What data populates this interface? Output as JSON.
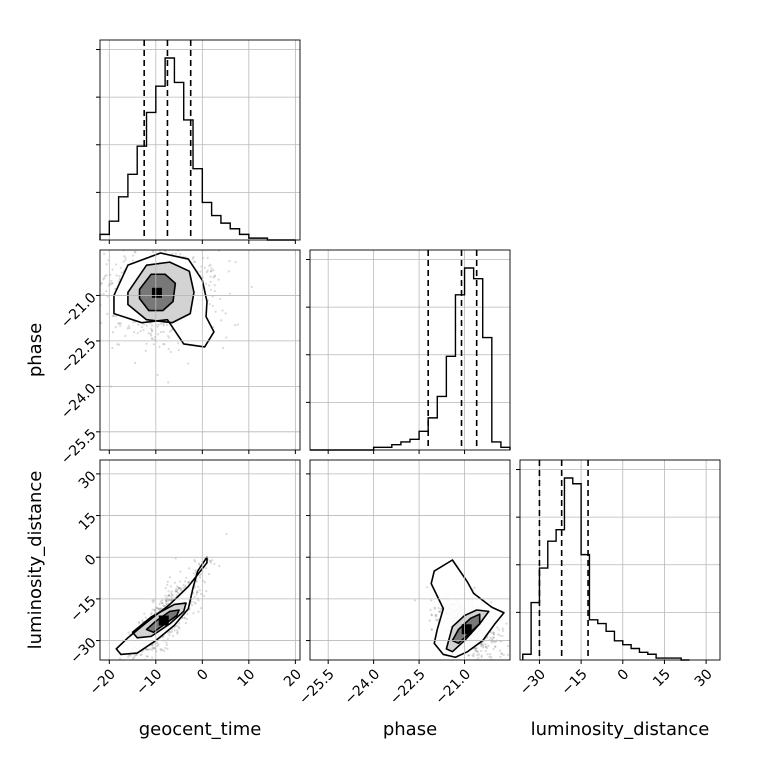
{
  "chart_data": {
    "type": "scatter",
    "grid": true,
    "params": [
      {
        "name": "geocent_time",
        "label": "geocent_time",
        "range": [
          -22,
          21
        ],
        "ticks": [
          -20,
          -10,
          0,
          10,
          20
        ],
        "tick_labels": [
          "−20",
          "−10",
          "0",
          "10",
          "20"
        ],
        "quantiles": [
          -12.5,
          -7.5,
          -2.5
        ]
      },
      {
        "name": "phase",
        "label": "phase",
        "range": [
          -26.1,
          -19.5
        ],
        "ticks": [
          -25.5,
          -24.0,
          -22.5,
          -21.0
        ],
        "tick_labels": [
          "−25.5",
          "−24.0",
          "−22.5",
          "−21.0"
        ],
        "quantiles": [
          -22.2,
          -21.1,
          -20.6
        ]
      },
      {
        "name": "luminosity_distance",
        "label": "luminosity_distance",
        "range": [
          -37,
          35
        ],
        "ticks": [
          -30,
          -15,
          0,
          15,
          30
        ],
        "tick_labels": [
          "−30",
          "−15",
          "0",
          "15",
          "30"
        ],
        "quantiles": [
          -30,
          -22,
          -12.5
        ]
      }
    ],
    "histograms": [
      {
        "param": "geocent_time",
        "edges": [
          -22,
          -20,
          -18,
          -16,
          -14,
          -12,
          -10,
          -8,
          -6,
          -4,
          -2,
          0,
          2,
          4,
          6,
          8,
          10,
          12,
          14,
          16,
          18,
          20
        ],
        "counts": [
          3,
          10,
          23,
          35,
          50,
          68,
          82,
          97,
          84,
          64,
          38,
          20,
          13,
          9,
          6,
          3,
          1,
          1,
          0,
          0,
          0
        ]
      },
      {
        "param": "phase",
        "edges": [
          -26.1,
          -25.8,
          -25.5,
          -25.2,
          -24.9,
          -24.6,
          -24.3,
          -24.0,
          -23.7,
          -23.4,
          -23.1,
          -22.8,
          -22.5,
          -22.2,
          -21.9,
          -21.6,
          -21.3,
          -21.0,
          -20.7,
          -20.4,
          -20.1,
          -19.8,
          -19.5
        ],
        "counts": [
          0,
          0,
          0,
          0,
          0,
          0,
          0,
          1,
          1,
          2,
          3,
          4,
          7,
          12,
          20,
          35,
          58,
          68,
          64,
          42,
          3,
          1
        ]
      },
      {
        "param": "luminosity_distance",
        "edges": [
          -36,
          -33,
          -30,
          -27,
          -24,
          -21,
          -18,
          -15,
          -12,
          -9,
          -6,
          -3,
          0,
          3,
          6,
          9,
          12,
          15,
          18,
          21,
          24
        ],
        "counts": [
          3,
          30,
          48,
          62,
          68,
          95,
          92,
          55,
          21,
          19,
          15,
          10,
          8,
          6,
          4,
          3,
          1,
          1,
          1,
          0
        ]
      }
    ],
    "pairs": [
      {
        "x": "geocent_time",
        "y": "phase",
        "center": [
          -9,
          -20.9
        ],
        "rotation_deg": -20,
        "spread": [
          6,
          0.9
        ],
        "contours": [
          [
            [
              -13.5,
              -20.8
            ],
            [
              -11,
              -20.3
            ],
            [
              -8,
              -20.3
            ],
            [
              -5.8,
              -20.6
            ],
            [
              -6.3,
              -21.2
            ],
            [
              -8.5,
              -21.5
            ],
            [
              -11.5,
              -21.5
            ],
            [
              -13.5,
              -21.1
            ]
          ],
          [
            [
              -16,
              -20.9
            ],
            [
              -12,
              -20.0
            ],
            [
              -7,
              -19.9
            ],
            [
              -2.8,
              -20.2
            ],
            [
              -1.8,
              -20.9
            ],
            [
              -2.6,
              -21.6
            ],
            [
              -6.5,
              -21.9
            ],
            [
              -12,
              -21.8
            ],
            [
              -16,
              -21.3
            ]
          ],
          [
            [
              -19,
              -21.0
            ],
            [
              -16,
              -20.0
            ],
            [
              -9,
              -19.6
            ],
            [
              -3,
              -19.8
            ],
            [
              0,
              -20.5
            ],
            [
              1,
              -21.2
            ],
            [
              0.8,
              -21.7
            ],
            [
              2.5,
              -22.2
            ],
            [
              0.5,
              -22.7
            ],
            [
              -4,
              -22.6
            ],
            [
              -7.5,
              -21.8
            ],
            [
              -13,
              -21.9
            ],
            [
              -19,
              -21.6
            ]
          ]
        ]
      },
      {
        "x": "geocent_time",
        "y": "luminosity_distance",
        "center": [
          -8,
          -22
        ],
        "rotation_deg": 52,
        "spread": [
          7,
          3
        ],
        "contours": [
          [
            [
              -12,
              -26
            ],
            [
              -10,
              -23
            ],
            [
              -7,
              -19.5
            ],
            [
              -5,
              -19
            ],
            [
              -5.5,
              -21
            ],
            [
              -8,
              -24
            ],
            [
              -10.5,
              -27
            ]
          ],
          [
            [
              -15,
              -27
            ],
            [
              -11,
              -21.5
            ],
            [
              -6,
              -17
            ],
            [
              -3.5,
              -16.5
            ],
            [
              -4,
              -19.5
            ],
            [
              -7,
              -24
            ],
            [
              -11,
              -28.5
            ],
            [
              -14,
              -29
            ]
          ],
          [
            [
              -18.5,
              -33
            ],
            [
              -16,
              -29
            ],
            [
              -12,
              -23.5
            ],
            [
              -7,
              -17
            ],
            [
              -3,
              -10.5
            ],
            [
              1,
              -2
            ],
            [
              1,
              0
            ],
            [
              -1,
              -5
            ],
            [
              -2,
              -11
            ],
            [
              -3,
              -18.5
            ],
            [
              -6,
              -24.5
            ],
            [
              -10,
              -30
            ],
            [
              -14,
              -34.5
            ],
            [
              -17.5,
              -35
            ]
          ]
        ]
      },
      {
        "x": "phase",
        "y": "luminosity_distance",
        "center": [
          -20.9,
          -24
        ],
        "rotation_deg": -45,
        "spread": [
          0.6,
          4
        ],
        "contours": [
          [
            [
              -21.4,
              -30
            ],
            [
              -21.2,
              -26
            ],
            [
              -20.8,
              -22
            ],
            [
              -20.5,
              -20.5
            ],
            [
              -20.5,
              -24
            ],
            [
              -20.9,
              -28
            ],
            [
              -21.2,
              -31
            ]
          ],
          [
            [
              -21.6,
              -33
            ],
            [
              -21.4,
              -25
            ],
            [
              -21.0,
              -21
            ],
            [
              -20.6,
              -19
            ],
            [
              -20.2,
              -19.5
            ],
            [
              -20.5,
              -24
            ],
            [
              -21.0,
              -30
            ],
            [
              -21.4,
              -34
            ]
          ],
          [
            [
              -21.7,
              -35
            ],
            [
              -22.0,
              -31
            ],
            [
              -21.9,
              -26
            ],
            [
              -21.7,
              -18.5
            ],
            [
              -22.1,
              -9.5
            ],
            [
              -22.0,
              -5
            ],
            [
              -21.4,
              -1
            ],
            [
              -20.9,
              -9
            ],
            [
              -20.7,
              -13
            ],
            [
              -20.1,
              -18
            ],
            [
              -19.7,
              -20
            ],
            [
              -20.0,
              -24
            ],
            [
              -20.4,
              -30
            ],
            [
              -20.9,
              -34
            ],
            [
              -21.3,
              -36
            ]
          ]
        ]
      }
    ]
  }
}
